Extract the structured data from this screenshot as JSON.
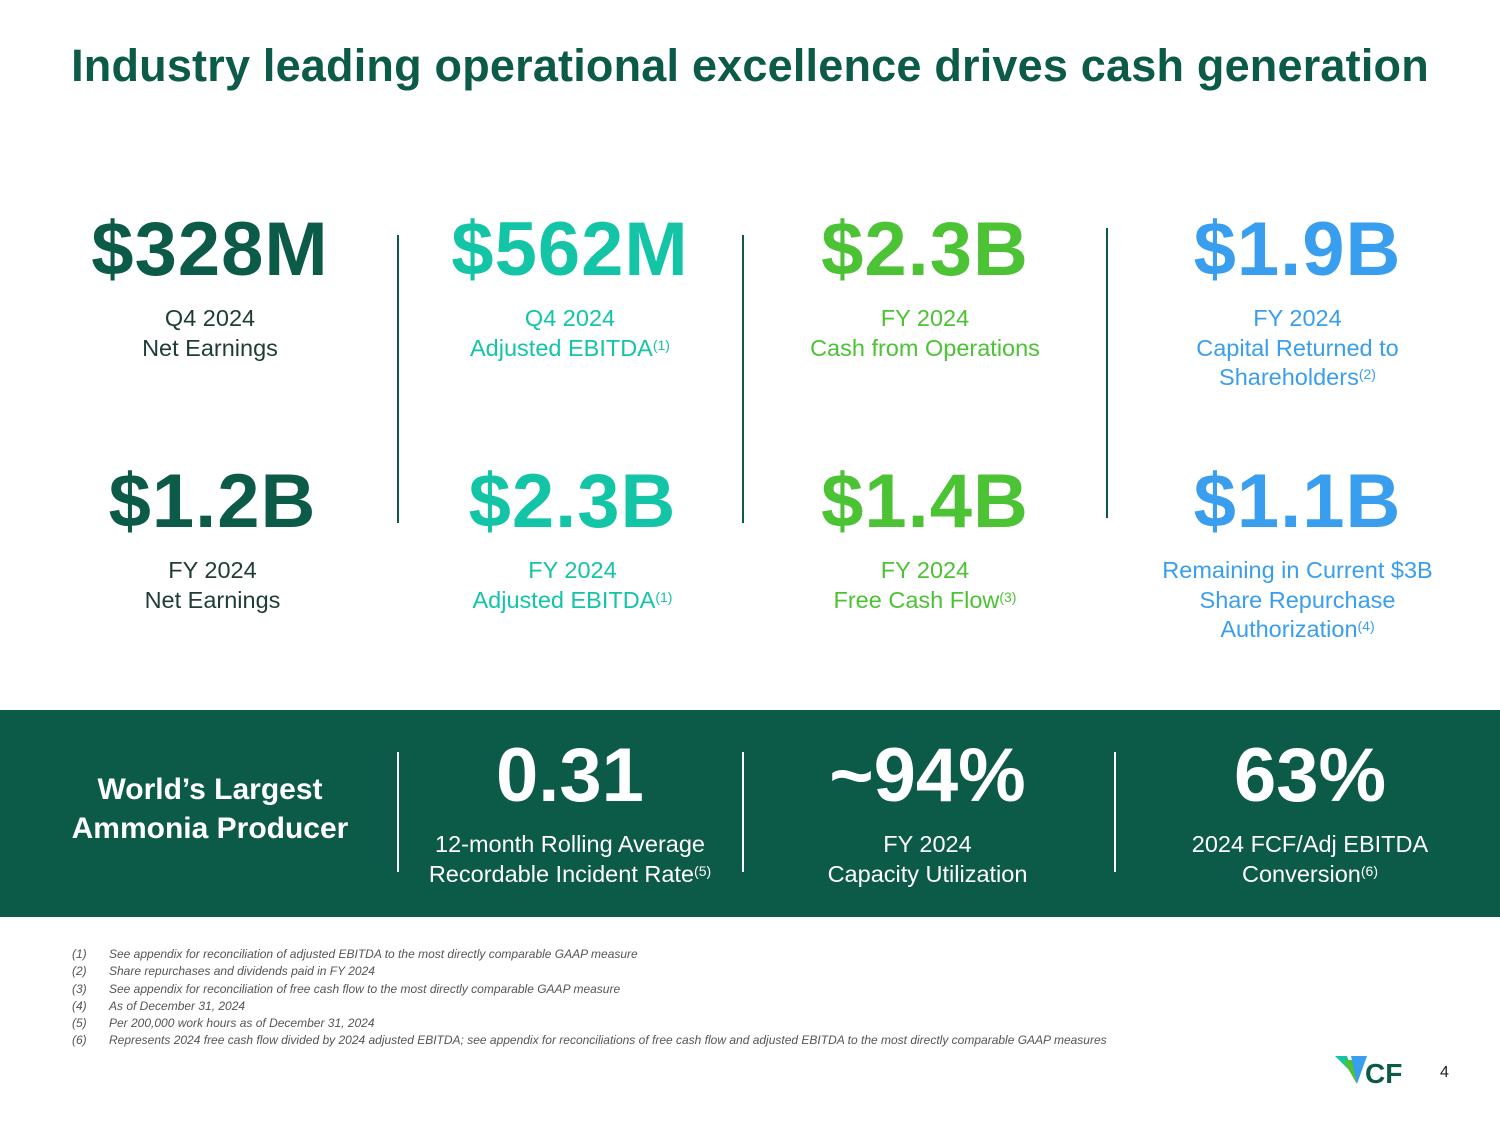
{
  "title": "Industry leading operational excellence drives cash generation",
  "metrics": [
    {
      "value": "$328M",
      "line1": "Q4 2024",
      "line2": "Net Earnings"
    },
    {
      "value": "$562M",
      "line1": "Q4 2024",
      "line2": "Adjusted EBITDA",
      "sup": "(1)"
    },
    {
      "value": "$2.3B",
      "line1": "FY 2024",
      "line2": "Cash from Operations"
    },
    {
      "value": "$1.9B",
      "line1": "FY 2024",
      "line2": "Capital Returned to",
      "line3": "Shareholders",
      "sup": "(2)"
    },
    {
      "value": "$1.2B",
      "line1": "FY 2024",
      "line2": "Net Earnings"
    },
    {
      "value": "$2.3B",
      "line1": "FY 2024",
      "line2": "Adjusted EBITDA",
      "sup": "(1)"
    },
    {
      "value": "$1.4B",
      "line1": "FY 2024",
      "line2": "Free Cash Flow",
      "sup": "(3)"
    },
    {
      "value": "$1.1B",
      "line1": "Remaining in Current $3B",
      "line2": "Share Repurchase",
      "line3": "Authorization",
      "sup": "(4)"
    }
  ],
  "band": {
    "title_line1": "World’s Largest",
    "title_line2": "Ammonia Producer",
    "metrics": [
      {
        "value": "0.31",
        "line1": "12-month Rolling Average",
        "line2": "Recordable Incident Rate",
        "sup": "(5)"
      },
      {
        "value": "~94%",
        "line1": "FY 2024",
        "line2": "Capacity Utilization"
      },
      {
        "value": "63%",
        "line1": "2024 FCF/Adj EBITDA",
        "line2": "Conversion",
        "sup": "(6)"
      }
    ]
  },
  "footnotes": [
    {
      "num": "(1)",
      "text": "See appendix for reconciliation of adjusted EBITDA to the most directly comparable GAAP measure"
    },
    {
      "num": "(2)",
      "text": "Share repurchases and dividends paid in FY 2024"
    },
    {
      "num": "(3)",
      "text": "See appendix for reconciliation of free cash flow to the most directly comparable GAAP measure"
    },
    {
      "num": "(4)",
      "text": "As of December 31, 2024"
    },
    {
      "num": "(5)",
      "text": "Per 200,000 work hours as of December 31, 2024"
    },
    {
      "num": "(6)",
      "text": "Represents 2024 free cash flow divided by 2024 adjusted EBITDA; see appendix for reconciliations of free cash flow and adjusted EBITDA to the most directly comparable GAAP measures"
    }
  ],
  "logo_text": "CF",
  "page_number": "4",
  "colors": {
    "dark_green": "#0c5a48",
    "teal": "#13c4a6",
    "green": "#4cc235",
    "blue": "#3a9eef"
  }
}
